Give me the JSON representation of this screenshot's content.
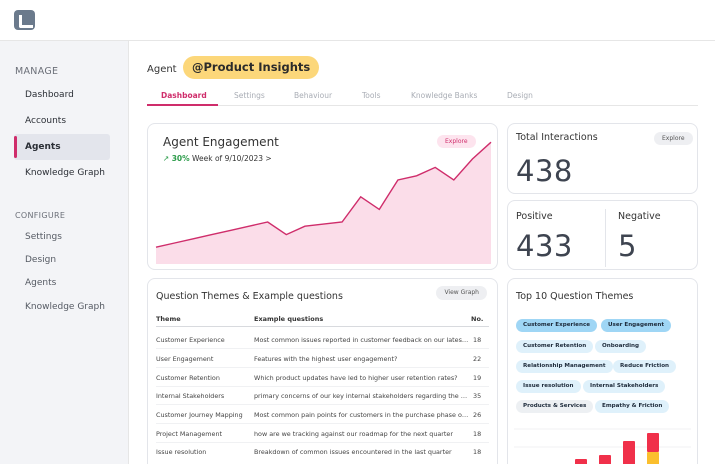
{
  "sidebar": {
    "manage_title": "MANAGE",
    "manage_items": [
      "Dashboard",
      "Accounts",
      "Agents",
      "Knowledge Graph"
    ],
    "configure_title": "CONFIGURE",
    "configure_items": [
      "Settings",
      "Design",
      "Agents",
      "Knowledge Graph"
    ]
  },
  "header": {
    "agent_label": "Agent",
    "agent_name": "@Product Insights"
  },
  "tabs": [
    "Dashboard",
    "Settings",
    "Behaviour",
    "Tools",
    "Knowledge Banks",
    "Design"
  ],
  "engagement": {
    "title": "Agent Engagement",
    "change_pct": "30%",
    "week_text": "Week of 9/10/2023 >",
    "explore_label": "Explore",
    "trend": [
      4,
      5,
      6,
      7,
      8,
      9,
      10,
      7,
      9,
      9.5,
      10,
      16,
      13,
      20,
      21,
      23,
      20,
      25,
      29
    ],
    "accent": "#cf2d6b"
  },
  "total_interactions": {
    "title": "Total Interactions",
    "value": "438",
    "explore_label": "Explore"
  },
  "sentiment": {
    "positive_label": "Positive",
    "positive_value": "433",
    "negative_label": "Negative",
    "negative_value": "5"
  },
  "question_themes": {
    "title": "Question Themes & Example questions",
    "button_label": "View Graph",
    "columns": [
      "Theme",
      "Example questions",
      "No."
    ],
    "rows": [
      [
        "Customer Experience",
        "Most common issues reported in customer feedback on our latest product release",
        "18"
      ],
      [
        "User Engagement",
        "Features with the highest user engagement?",
        "22"
      ],
      [
        "Customer Retention",
        "Which product updates have led to higher user retention rates?",
        "19"
      ],
      [
        "Internal Stakeholders",
        "primary concerns of our key internal stakeholders regarding the upcoming launch",
        "35"
      ],
      [
        "Customer Journey Mapping",
        "Most common pain points for customers in the purchase phase of the journey",
        "26"
      ],
      [
        "Project Management",
        "how are we tracking against our roadmap for the next quarter",
        "18"
      ],
      [
        "Issue resolution",
        "Breakdown of common issues encountered in the last quarter",
        "18"
      ]
    ]
  },
  "top10": {
    "title": "Top 10 Question Themes",
    "chips": [
      {
        "label": "Customer Experience",
        "style": "blue"
      },
      {
        "label": "User Engagement",
        "style": "blue"
      },
      {
        "label": "Customer Retention",
        "style": "light"
      },
      {
        "label": "Onboarding",
        "style": "light"
      },
      {
        "label": "Relationship Management",
        "style": "light"
      },
      {
        "label": "Reduce Friction",
        "style": "light"
      },
      {
        "label": "Issue resolution",
        "style": "light"
      },
      {
        "label": "Internal Stakeholders",
        "style": "light"
      },
      {
        "label": "Products & Services",
        "style": "grey"
      },
      {
        "label": "Empathy & Friction",
        "style": "light"
      }
    ]
  }
}
